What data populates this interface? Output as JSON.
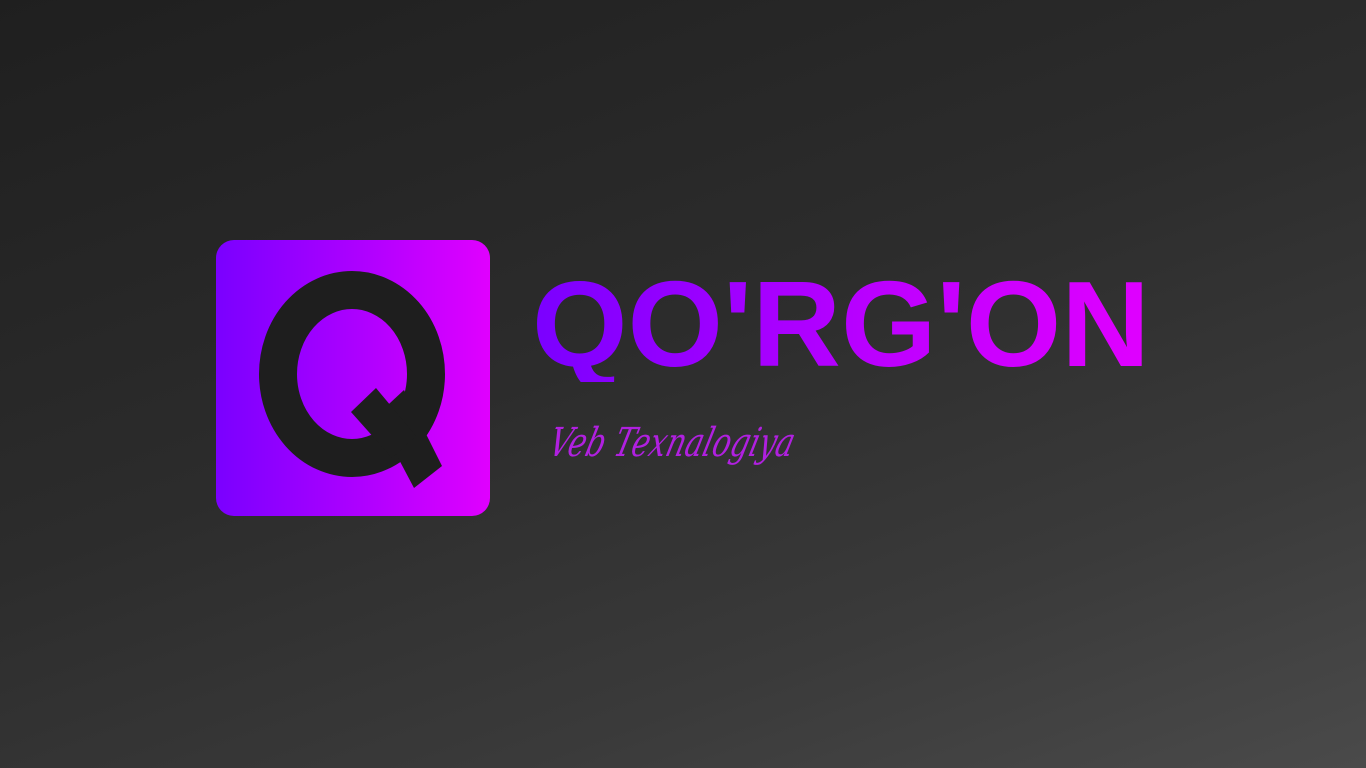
{
  "brand": {
    "mark_letter": "Q",
    "name": "QO'RG'ON",
    "tagline": "Veb Texnalogiya"
  },
  "colors": {
    "background_dark": "#1f1f1f",
    "background_light": "#4a4a4a",
    "accent_start": "#7a00ff",
    "accent_end": "#e000ff",
    "mark_glyph": "#1e1e1e"
  }
}
